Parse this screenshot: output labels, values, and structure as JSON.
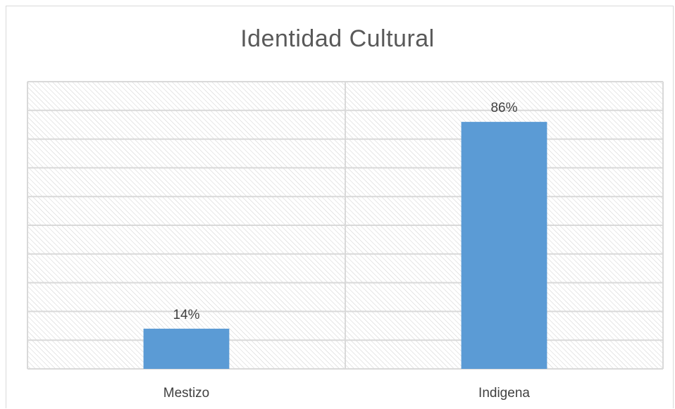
{
  "chart_data": {
    "type": "bar",
    "title": "Identidad Cultural",
    "categories": [
      "Mestizo",
      "Indigena"
    ],
    "values": [
      14,
      86
    ],
    "data_labels": [
      "14%",
      "86%"
    ],
    "ylim": [
      0,
      100
    ],
    "grid": true,
    "legend": "none",
    "bar_color": "#5b9bd5",
    "grid_color": "#d9d9d9",
    "plot_pattern": "diagonal-hatch"
  }
}
